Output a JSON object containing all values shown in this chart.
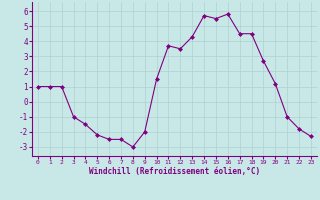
{
  "x": [
    0,
    1,
    2,
    3,
    4,
    5,
    6,
    7,
    8,
    9,
    10,
    11,
    12,
    13,
    14,
    15,
    16,
    17,
    18,
    19,
    20,
    21,
    22,
    23
  ],
  "y": [
    1,
    1,
    1,
    -1,
    -1.5,
    -2.2,
    -2.5,
    -2.5,
    -3,
    -2,
    1.5,
    3.7,
    3.5,
    4.3,
    5.7,
    5.5,
    5.8,
    4.5,
    4.5,
    2.7,
    1.2,
    -1,
    -1.8,
    -2.3
  ],
  "line_color": "#800080",
  "marker": "D",
  "marker_size": 2,
  "bg_color": "#c8e8e8",
  "grid_color": "#b0d0d0",
  "xlabel": "Windchill (Refroidissement éolien,°C)",
  "yticks": [
    -3,
    -2,
    -1,
    0,
    1,
    2,
    3,
    4,
    5,
    6
  ],
  "xticks": [
    0,
    1,
    2,
    3,
    4,
    5,
    6,
    7,
    8,
    9,
    10,
    11,
    12,
    13,
    14,
    15,
    16,
    17,
    18,
    19,
    20,
    21,
    22,
    23
  ],
  "ylim": [
    -3.6,
    6.6
  ],
  "xlim": [
    -0.5,
    23.5
  ],
  "tick_color": "#800080",
  "label_color": "#800080",
  "spine_color": "#800080"
}
